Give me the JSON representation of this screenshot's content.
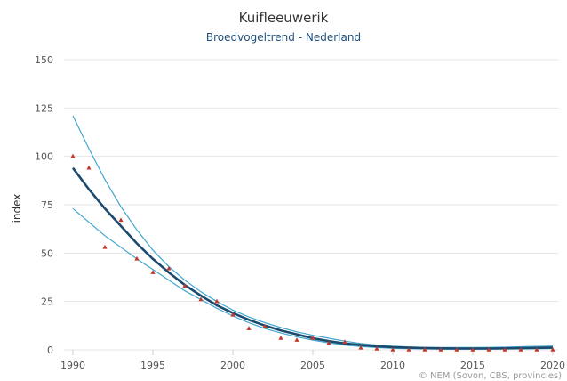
{
  "chart_data": {
    "type": "line",
    "title": "Kuifleeuwerik",
    "subtitle": "Broedvogeltrend - Nederland",
    "ylabel": "index",
    "xlabel": "",
    "credit": "© NEM (Sovon, CBS, provincies)",
    "xlim": [
      1990,
      2020
    ],
    "ylim": [
      0,
      150
    ],
    "x_ticks": [
      1990,
      1995,
      2000,
      2005,
      2010,
      2015,
      2020
    ],
    "y_ticks": [
      0,
      25,
      50,
      75,
      100,
      125,
      150
    ],
    "grid": true,
    "legend": "none",
    "colors": {
      "trend": "#1c4a6e",
      "band": "#3fa6cf",
      "points": "#c0392b",
      "grid": "#e6e6e6"
    },
    "trend": {
      "x": [
        1990,
        1991,
        1992,
        1993,
        1994,
        1995,
        1996,
        1997,
        1998,
        1999,
        2000,
        2001,
        2002,
        2003,
        2004,
        2005,
        2006,
        2007,
        2008,
        2009,
        2010,
        2011,
        2012,
        2013,
        2014,
        2015,
        2016,
        2017,
        2018,
        2019,
        2020
      ],
      "y": [
        94,
        83,
        73,
        64,
        55,
        47,
        40,
        33.5,
        28,
        23,
        19,
        15.5,
        12.5,
        10,
        8,
        6,
        4.5,
        3.3,
        2.5,
        1.9,
        1.4,
        1.1,
        0.9,
        0.8,
        0.7,
        0.7,
        0.7,
        0.8,
        0.9,
        1.0,
        1.2
      ]
    },
    "upper": {
      "x": [
        1990,
        1991,
        1992,
        1993,
        1994,
        1995,
        1996,
        1997,
        1998,
        1999,
        2000,
        2001,
        2002,
        2003,
        2004,
        2005,
        2006,
        2007,
        2008,
        2009,
        2010,
        2011,
        2012,
        2013,
        2014,
        2015,
        2016,
        2017,
        2018,
        2019,
        2020
      ],
      "y": [
        121,
        104,
        88,
        74,
        62,
        51.5,
        43,
        36,
        30,
        25,
        20.5,
        17,
        14,
        11.5,
        9.3,
        7.5,
        6,
        4.5,
        3.3,
        2.5,
        1.9,
        1.5,
        1.3,
        1.2,
        1.2,
        1.2,
        1.3,
        1.4,
        1.6,
        1.8,
        2.0
      ]
    },
    "lower": {
      "x": [
        1990,
        1991,
        1992,
        1993,
        1994,
        1995,
        1996,
        1997,
        1998,
        1999,
        2000,
        2001,
        2002,
        2003,
        2004,
        2005,
        2006,
        2007,
        2008,
        2009,
        2010,
        2011,
        2012,
        2013,
        2014,
        2015,
        2016,
        2017,
        2018,
        2019,
        2020
      ],
      "y": [
        73,
        66,
        59,
        53,
        47,
        41.5,
        36,
        30.5,
        26,
        21.5,
        17.5,
        14,
        11,
        8.7,
        6.7,
        5,
        3.6,
        2.5,
        1.7,
        1.2,
        0.8,
        0.6,
        0.5,
        0.4,
        0.4,
        0.4,
        0.4,
        0.5,
        0.5,
        0.6,
        0.7
      ]
    },
    "observed": {
      "x": [
        1990,
        1991,
        1992,
        1993,
        1994,
        1995,
        1996,
        1997,
        1998,
        1999,
        2000,
        2001,
        2002,
        2003,
        2004,
        2005,
        2006,
        2007,
        2008,
        2009,
        2010,
        2011,
        2012,
        2013,
        2014,
        2015,
        2016,
        2017,
        2018,
        2019,
        2020
      ],
      "y": [
        100,
        94,
        53,
        67,
        47,
        40,
        42,
        33,
        26,
        25,
        18,
        11,
        12,
        6,
        5,
        6,
        3.5,
        4,
        1,
        0.5,
        0,
        0,
        0,
        0,
        0,
        0,
        0,
        0,
        0,
        0,
        0
      ]
    }
  }
}
